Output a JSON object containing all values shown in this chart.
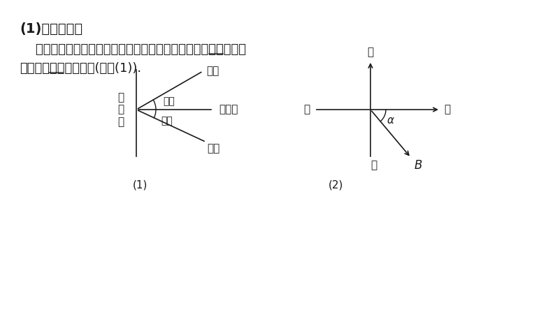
{
  "bg_color": "#ffffff",
  "title_text": "(1)仰角和俯角",
  "title_bold": true,
  "title_fontsize": 14,
  "body_line1": "    在视线和水平线所成的角中，视线在水平线上方的角叫仰角，在",
  "body_line2": "水平线下方的角叫俯角(如图(1)).",
  "underline_上方": true,
  "underline_下方": true,
  "fig1_label": "(1)",
  "fig2_label": "(2)",
  "fig1_vertical_label": "铅\n垂\n线",
  "fig1_horizontal_label": "水平线",
  "fig1_upper_line_label": "视线",
  "fig1_upper_angle_label": "仰角",
  "fig1_lower_angle_label": "俯角",
  "fig1_lower_line_label": "视线",
  "fig2_north": "北",
  "fig2_south": "南",
  "fig2_east": "东",
  "fig2_west": "西",
  "fig2_alpha": "α",
  "fig2_B": "B",
  "line_color": "#1a1a1a",
  "text_color": "#1a1a1a",
  "fontsize_diagram": 11,
  "fontsize_body": 13
}
